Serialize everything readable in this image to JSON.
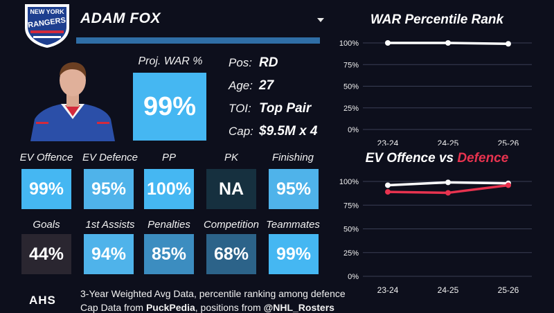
{
  "player": {
    "name": "ADAM FOX"
  },
  "team": {
    "logo_lines": [
      "NEW YORK",
      "RANGERS"
    ]
  },
  "proj_war": {
    "label": "Proj. WAR %",
    "value": "99%",
    "color": "#45b7f2"
  },
  "info": [
    {
      "key": "Pos:",
      "value": "RD"
    },
    {
      "key": "Age:",
      "value": "27"
    },
    {
      "key": "TOI:",
      "value": "Top Pair"
    },
    {
      "key": "Cap:",
      "value": "$9.5M x 4"
    }
  ],
  "stats_row1": [
    {
      "label": "EV Offence",
      "value": "99%",
      "color": "#45b7f2"
    },
    {
      "label": "EV Defence",
      "value": "95%",
      "color": "#4fb3ea"
    },
    {
      "label": "PP",
      "value": "100%",
      "color": "#45b7f2"
    },
    {
      "label": "PK",
      "value": "NA",
      "color": "#16303f"
    },
    {
      "label": "Finishing",
      "value": "95%",
      "color": "#4fb3ea"
    }
  ],
  "stats_row2": [
    {
      "label": "Goals",
      "value": "44%",
      "color": "#2a2630"
    },
    {
      "label": "1st Assists",
      "value": "94%",
      "color": "#4fb3ea"
    },
    {
      "label": "Penalties",
      "value": "85%",
      "color": "#3c8dc0"
    },
    {
      "label": "Competition",
      "value": "68%",
      "color": "#2c6389"
    },
    {
      "label": "Teammates",
      "value": "99%",
      "color": "#45b7f2"
    }
  ],
  "footer": {
    "line1": "3-Year Weighted Avg Data, percentile ranking among defence",
    "line2_prefix": "Cap Data from ",
    "line2_source1": "PuckPedia",
    "line2_middle": ", positions from ",
    "line2_source2": "@NHL_Rosters",
    "brand": "AHS"
  },
  "chart_data": [
    {
      "type": "line",
      "title": "WAR Percentile Rank",
      "categories": [
        "23-24",
        "24-25",
        "25-26"
      ],
      "yticks": [
        "100%",
        "75%",
        "50%",
        "25%",
        "0%"
      ],
      "ylim": [
        0,
        100
      ],
      "series": [
        {
          "values": [
            100,
            100,
            99
          ],
          "color": "#ffffff"
        }
      ]
    },
    {
      "type": "line",
      "title_part1": "EV Offence vs ",
      "title_part2": "Defence",
      "categories": [
        "23-24",
        "24-25",
        "25-26"
      ],
      "yticks": [
        "100%",
        "75%",
        "50%",
        "25%",
        "0%"
      ],
      "ylim": [
        0,
        100
      ],
      "series": [
        {
          "name": "EV Offence",
          "values": [
            96,
            99,
            98
          ],
          "color": "#ffffff"
        },
        {
          "name": "Defence",
          "values": [
            89,
            88,
            96
          ],
          "color": "#e8334f"
        }
      ]
    }
  ]
}
